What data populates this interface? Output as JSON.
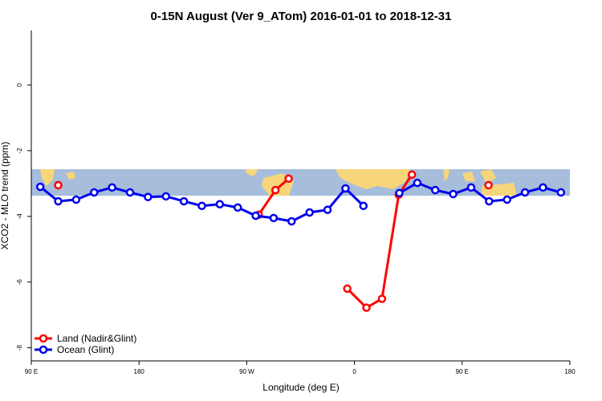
{
  "chart_data": {
    "type": "line",
    "title": "0-15N August (Ver 9_ATom)   2016-01-01 to 2018-12-31",
    "x_label": "Longitude (deg E)",
    "y_label": "XCO2 - MLO trend (ppm)",
    "xlim": [
      90,
      540
    ],
    "ylim": [
      -8.4,
      1.66
    ],
    "xticks": [
      {
        "value": 90,
        "label": "90 E"
      },
      180,
      {
        "value": 270,
        "label": "90 W"
      },
      {
        "value": 360,
        "label": "0"
      },
      {
        "value": 450,
        "label": "90 E"
      },
      {
        "value": 540,
        "label": "180"
      }
    ],
    "yticks": [
      0,
      -2,
      -4,
      -6,
      -8
    ],
    "legend": "bottom-left",
    "series": [
      {
        "name": "Land (Nadir&Glint)",
        "color": "#ff0000",
        "x": [
          112.5,
          200,
          280,
          294,
          305,
          330,
          354,
          370,
          383,
          397,
          408,
          440,
          472
        ],
        "values": [
          -3.05,
          null,
          -3.95,
          -3.2,
          -2.85,
          null,
          -6.2,
          -6.78,
          -6.51,
          -3.34,
          -2.73,
          null,
          -3.05
        ]
      },
      {
        "name": "Ocean (Glint)",
        "color": "#0000ee",
        "x": [
          97.5,
          112.5,
          127.5,
          142.5,
          157.5,
          172.5,
          187.5,
          202.5,
          217.5,
          232.5,
          247.5,
          262.5,
          277.5,
          292.5,
          307.5,
          322.5,
          337.5,
          352.5,
          367.5,
          382.5,
          397.5,
          412.5,
          427.5,
          442.5,
          457.5,
          472.5,
          487.5,
          502.5,
          517.5,
          532.5
        ],
        "values": [
          -3.1,
          -3.54,
          -3.49,
          -3.27,
          -3.12,
          -3.27,
          -3.41,
          -3.39,
          -3.54,
          -3.68,
          -3.63,
          -3.73,
          -3.98,
          -4.05,
          -4.15,
          -3.88,
          -3.8,
          -3.15,
          -3.68,
          null,
          -3.29,
          -2.98,
          -3.2,
          -3.32,
          -3.12,
          -3.54,
          -3.49,
          -3.27,
          -3.12,
          -3.27
        ]
      }
    ]
  }
}
